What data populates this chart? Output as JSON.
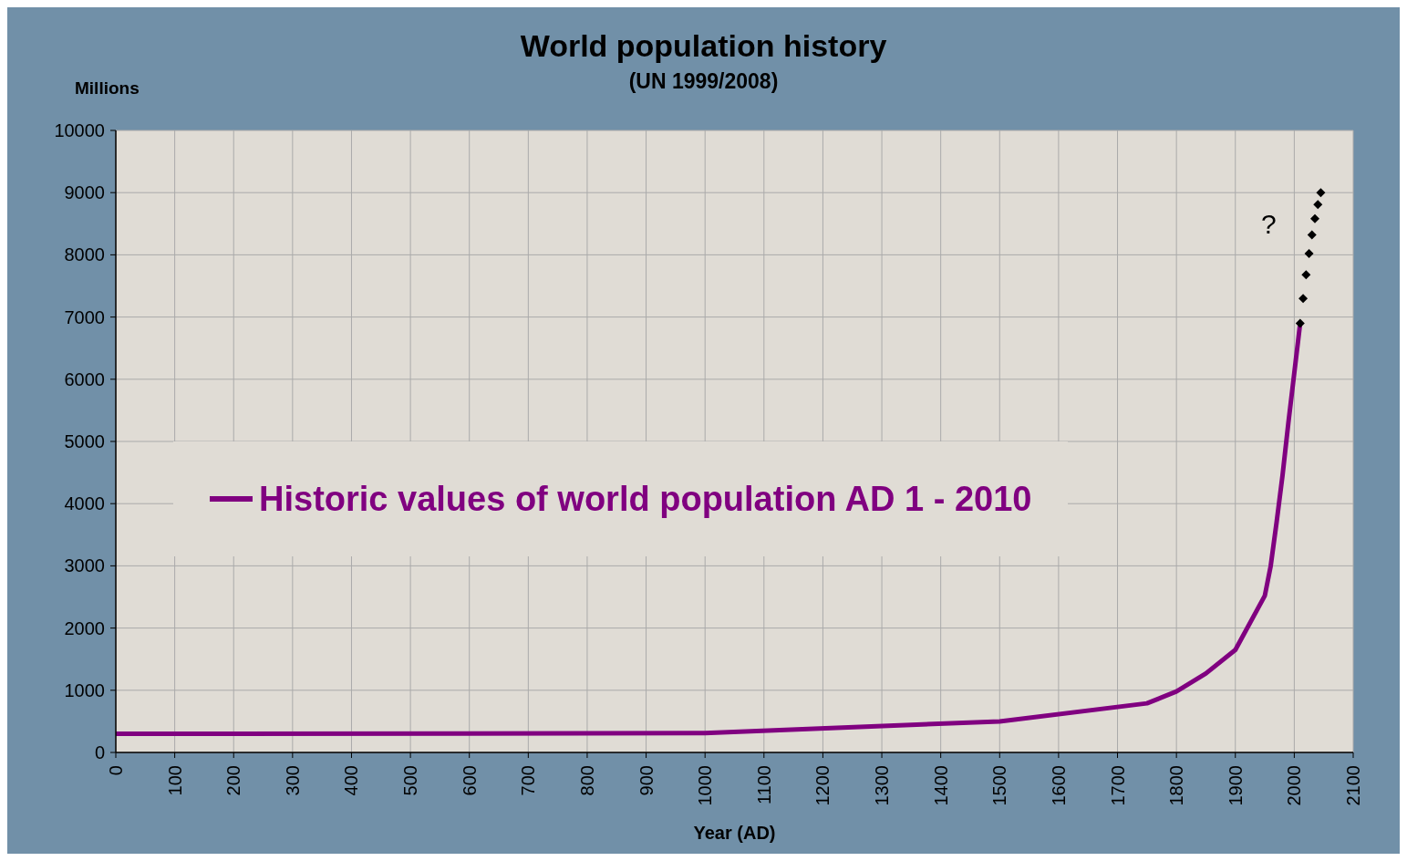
{
  "chart_data": {
    "type": "line",
    "title": "World population history",
    "subtitle": "(UN 1999/2008)",
    "xlabel": "Year (AD)",
    "ylabel": "Millions",
    "xlim": [
      0,
      2100
    ],
    "xticks": [
      0,
      100,
      200,
      300,
      400,
      500,
      600,
      700,
      800,
      900,
      1000,
      1100,
      1200,
      1300,
      1400,
      1500,
      1600,
      1700,
      1800,
      1900,
      2000,
      2100
    ],
    "ylim": [
      0,
      10000
    ],
    "yticks": [
      0,
      1000,
      2000,
      3000,
      4000,
      5000,
      6000,
      7000,
      8000,
      9000,
      10000
    ],
    "grid": true,
    "legend": "left",
    "series": [
      {
        "name": "Historic values of world population AD 1 - 2010",
        "type": "line",
        "color": "#800080",
        "x": [
          1,
          1000,
          1500,
          1750,
          1800,
          1850,
          1900,
          1950,
          1960,
          1970,
          1980,
          1990,
          2000,
          2010
        ],
        "values": [
          300,
          310,
          500,
          790,
          980,
          1270,
          1650,
          2520,
          3000,
          3700,
          4450,
          5300,
          6100,
          6900
        ]
      },
      {
        "type": "scatter",
        "color": "#000000",
        "marker": "diamond",
        "x": [
          2010,
          2015,
          2020,
          2025,
          2030,
          2035,
          2040,
          2045
        ],
        "values": [
          6900,
          7300,
          7680,
          8020,
          8320,
          8580,
          8810,
          9000
        ]
      }
    ],
    "annotations": [
      "?"
    ]
  }
}
